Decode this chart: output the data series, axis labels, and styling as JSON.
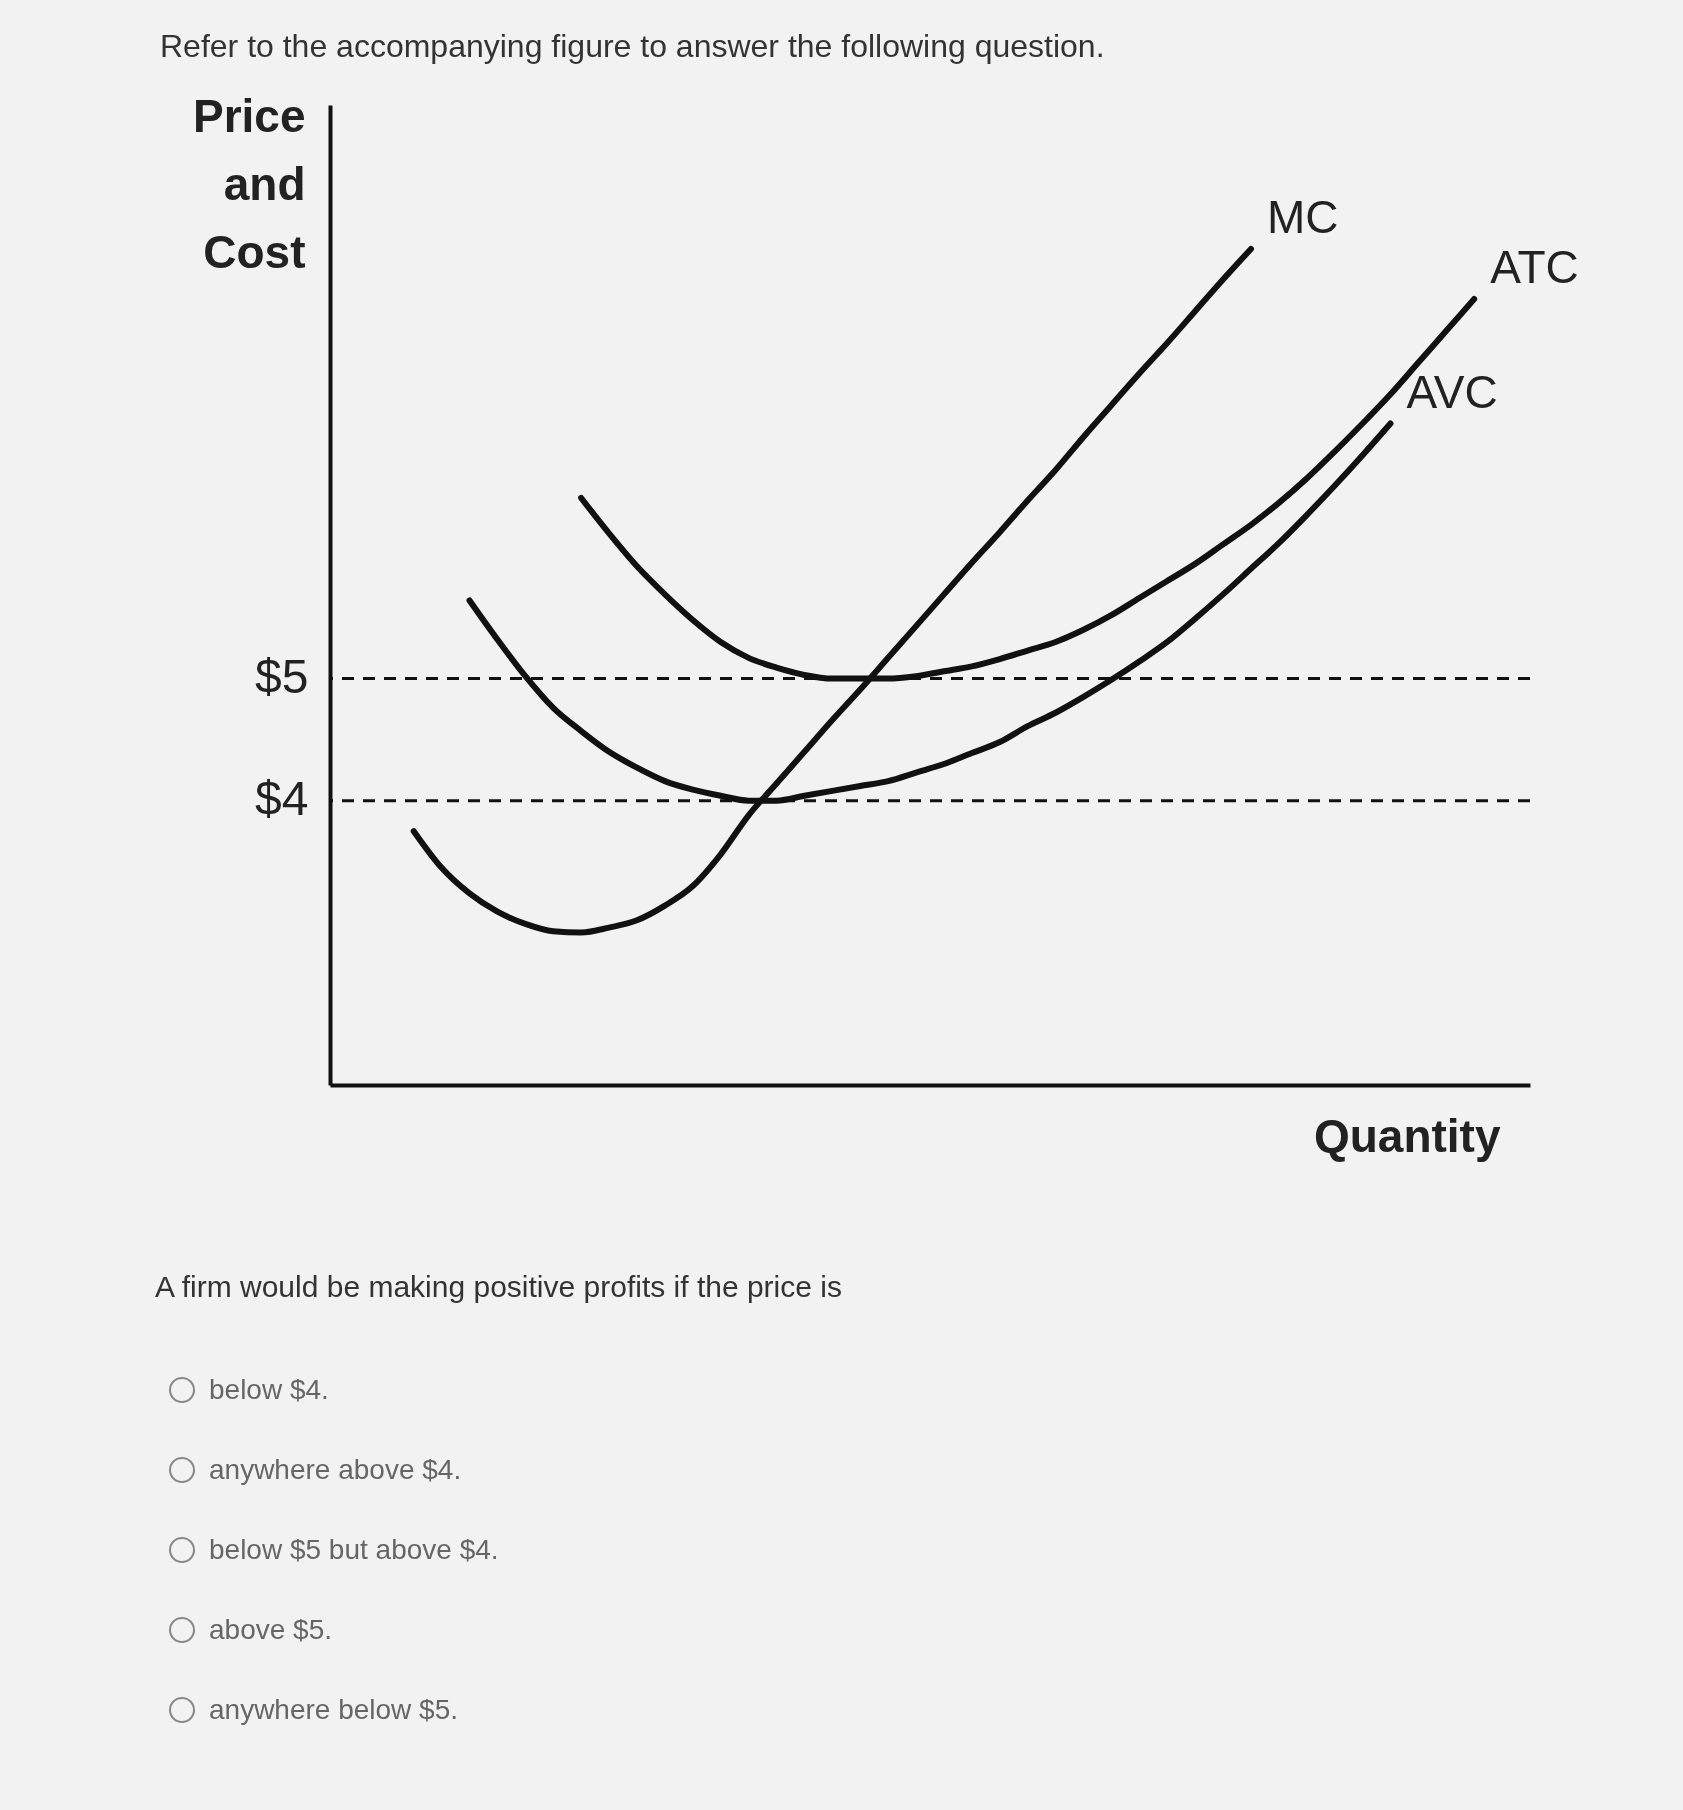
{
  "chart_data": {
    "type": "line",
    "title": "Refer to the accompanying figure to answer the following question.",
    "ylabel": "Price and Cost",
    "xlabel": "Quantity",
    "categories": [
      null,
      null,
      null,
      null,
      null,
      null,
      null,
      null,
      null,
      null,
      null,
      null,
      null,
      null,
      null,
      null,
      null,
      null,
      null,
      null,
      null,
      null,
      null,
      null,
      null,
      null,
      null,
      null,
      null,
      null,
      null,
      null,
      null,
      null,
      null,
      null,
      null,
      null,
      null,
      null,
      null,
      null,
      null,
      null
    ],
    "series": [
      {
        "name": "MC",
        "color": "#111111",
        "values": [
          null,
          null,
          null,
          3.75,
          3.45,
          3.24,
          3.09,
          2.99,
          2.93,
          2.92,
          2.96,
          3.02,
          3.14,
          3.3,
          3.56,
          3.88,
          4.14,
          4.4,
          4.66,
          4.91,
          5.17,
          5.43,
          5.69,
          5.95,
          6.2,
          6.46,
          6.71,
          6.98,
          7.24,
          7.5,
          7.75,
          8.01,
          8.27,
          8.52,
          null,
          null,
          null,
          null,
          null,
          null,
          null,
          null,
          null,
          null
        ]
      },
      {
        "name": "ATC",
        "color": "#111111",
        "values": [
          null,
          null,
          null,
          null,
          null,
          null,
          null,
          null,
          null,
          6.48,
          6.19,
          5.92,
          5.69,
          5.48,
          5.3,
          5.17,
          5.09,
          5.03,
          5.0,
          5.0,
          5.0,
          5.02,
          5.06,
          5.1,
          5.16,
          5.23,
          5.3,
          5.4,
          5.52,
          5.66,
          5.8,
          5.94,
          6.1,
          6.26,
          6.44,
          6.64,
          6.86,
          7.09,
          7.33,
          7.59,
          7.85,
          8.11,
          null,
          null
        ]
      },
      {
        "name": "AVC",
        "color": "#111111",
        "values": [
          null,
          null,
          null,
          null,
          null,
          5.64,
          5.32,
          5.02,
          4.76,
          4.57,
          4.4,
          4.27,
          4.16,
          4.09,
          4.04,
          4.0,
          4.0,
          4.04,
          4.08,
          4.12,
          4.16,
          4.23,
          4.3,
          4.39,
          4.48,
          4.61,
          4.72,
          4.85,
          4.99,
          5.14,
          5.3,
          5.49,
          5.69,
          5.9,
          6.11,
          6.34,
          6.58,
          6.83,
          7.09,
          null,
          null,
          null,
          null,
          null
        ]
      }
    ],
    "ylim": [
      1.67,
      9.7
    ],
    "yticks": [
      {
        "value": 4,
        "label": "$4"
      },
      {
        "value": 5,
        "label": "$5"
      }
    ],
    "ref_lines": [
      {
        "axis": "y",
        "value": 5,
        "label": null,
        "line_style": "dashed",
        "color": "#111111"
      },
      {
        "axis": "y",
        "value": 4,
        "label": null,
        "line_style": "dashed",
        "color": "#111111"
      }
    ],
    "grid": false,
    "tick_labels": "y",
    "marker": "none",
    "line_style": "solid",
    "annotations": [
      "A firm would be making positive profits if the price is",
      "below $4.",
      "anywhere above $4.",
      "below $5 but above $4.",
      "above $5.",
      "anywhere below $5."
    ]
  }
}
